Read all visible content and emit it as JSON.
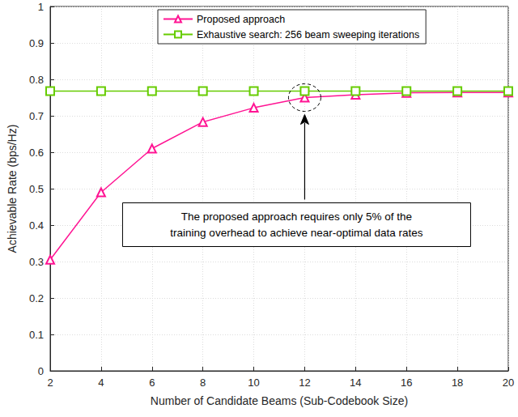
{
  "chart_data": {
    "type": "line",
    "x_label": "Number of Candidate Beams (Sub-Codebook Size)",
    "y_label": "Achievable Rate (bps/Hz)",
    "x": [
      2,
      4,
      6,
      8,
      10,
      12,
      14,
      16,
      18,
      20
    ],
    "series": [
      {
        "name": "Proposed approach",
        "color": "#ff1493",
        "marker": "triangle",
        "values": [
          0.305,
          0.49,
          0.61,
          0.683,
          0.722,
          0.75,
          0.758,
          0.763,
          0.764,
          0.764
        ]
      },
      {
        "name": "Exhaustive search: 256 beam sweeping iterations",
        "color": "#66cc00",
        "marker": "square",
        "values": [
          0.768,
          0.768,
          0.768,
          0.768,
          0.768,
          0.768,
          0.768,
          0.768,
          0.768,
          0.768
        ]
      }
    ],
    "xlim": [
      2,
      20
    ],
    "xticks": [
      2,
      4,
      6,
      8,
      10,
      12,
      14,
      16,
      18,
      20
    ],
    "ylim": [
      0,
      1
    ],
    "yticks": [
      0,
      0.1,
      0.2,
      0.3,
      0.4,
      0.5,
      0.6,
      0.7,
      0.8,
      0.9,
      1
    ],
    "grid": true,
    "legend": "top",
    "annotation": {
      "text": "The proposed approach requires only 5% of the\ntraining overhead to achieve near-optimal data rates",
      "x": 12,
      "y": 0.75
    }
  }
}
